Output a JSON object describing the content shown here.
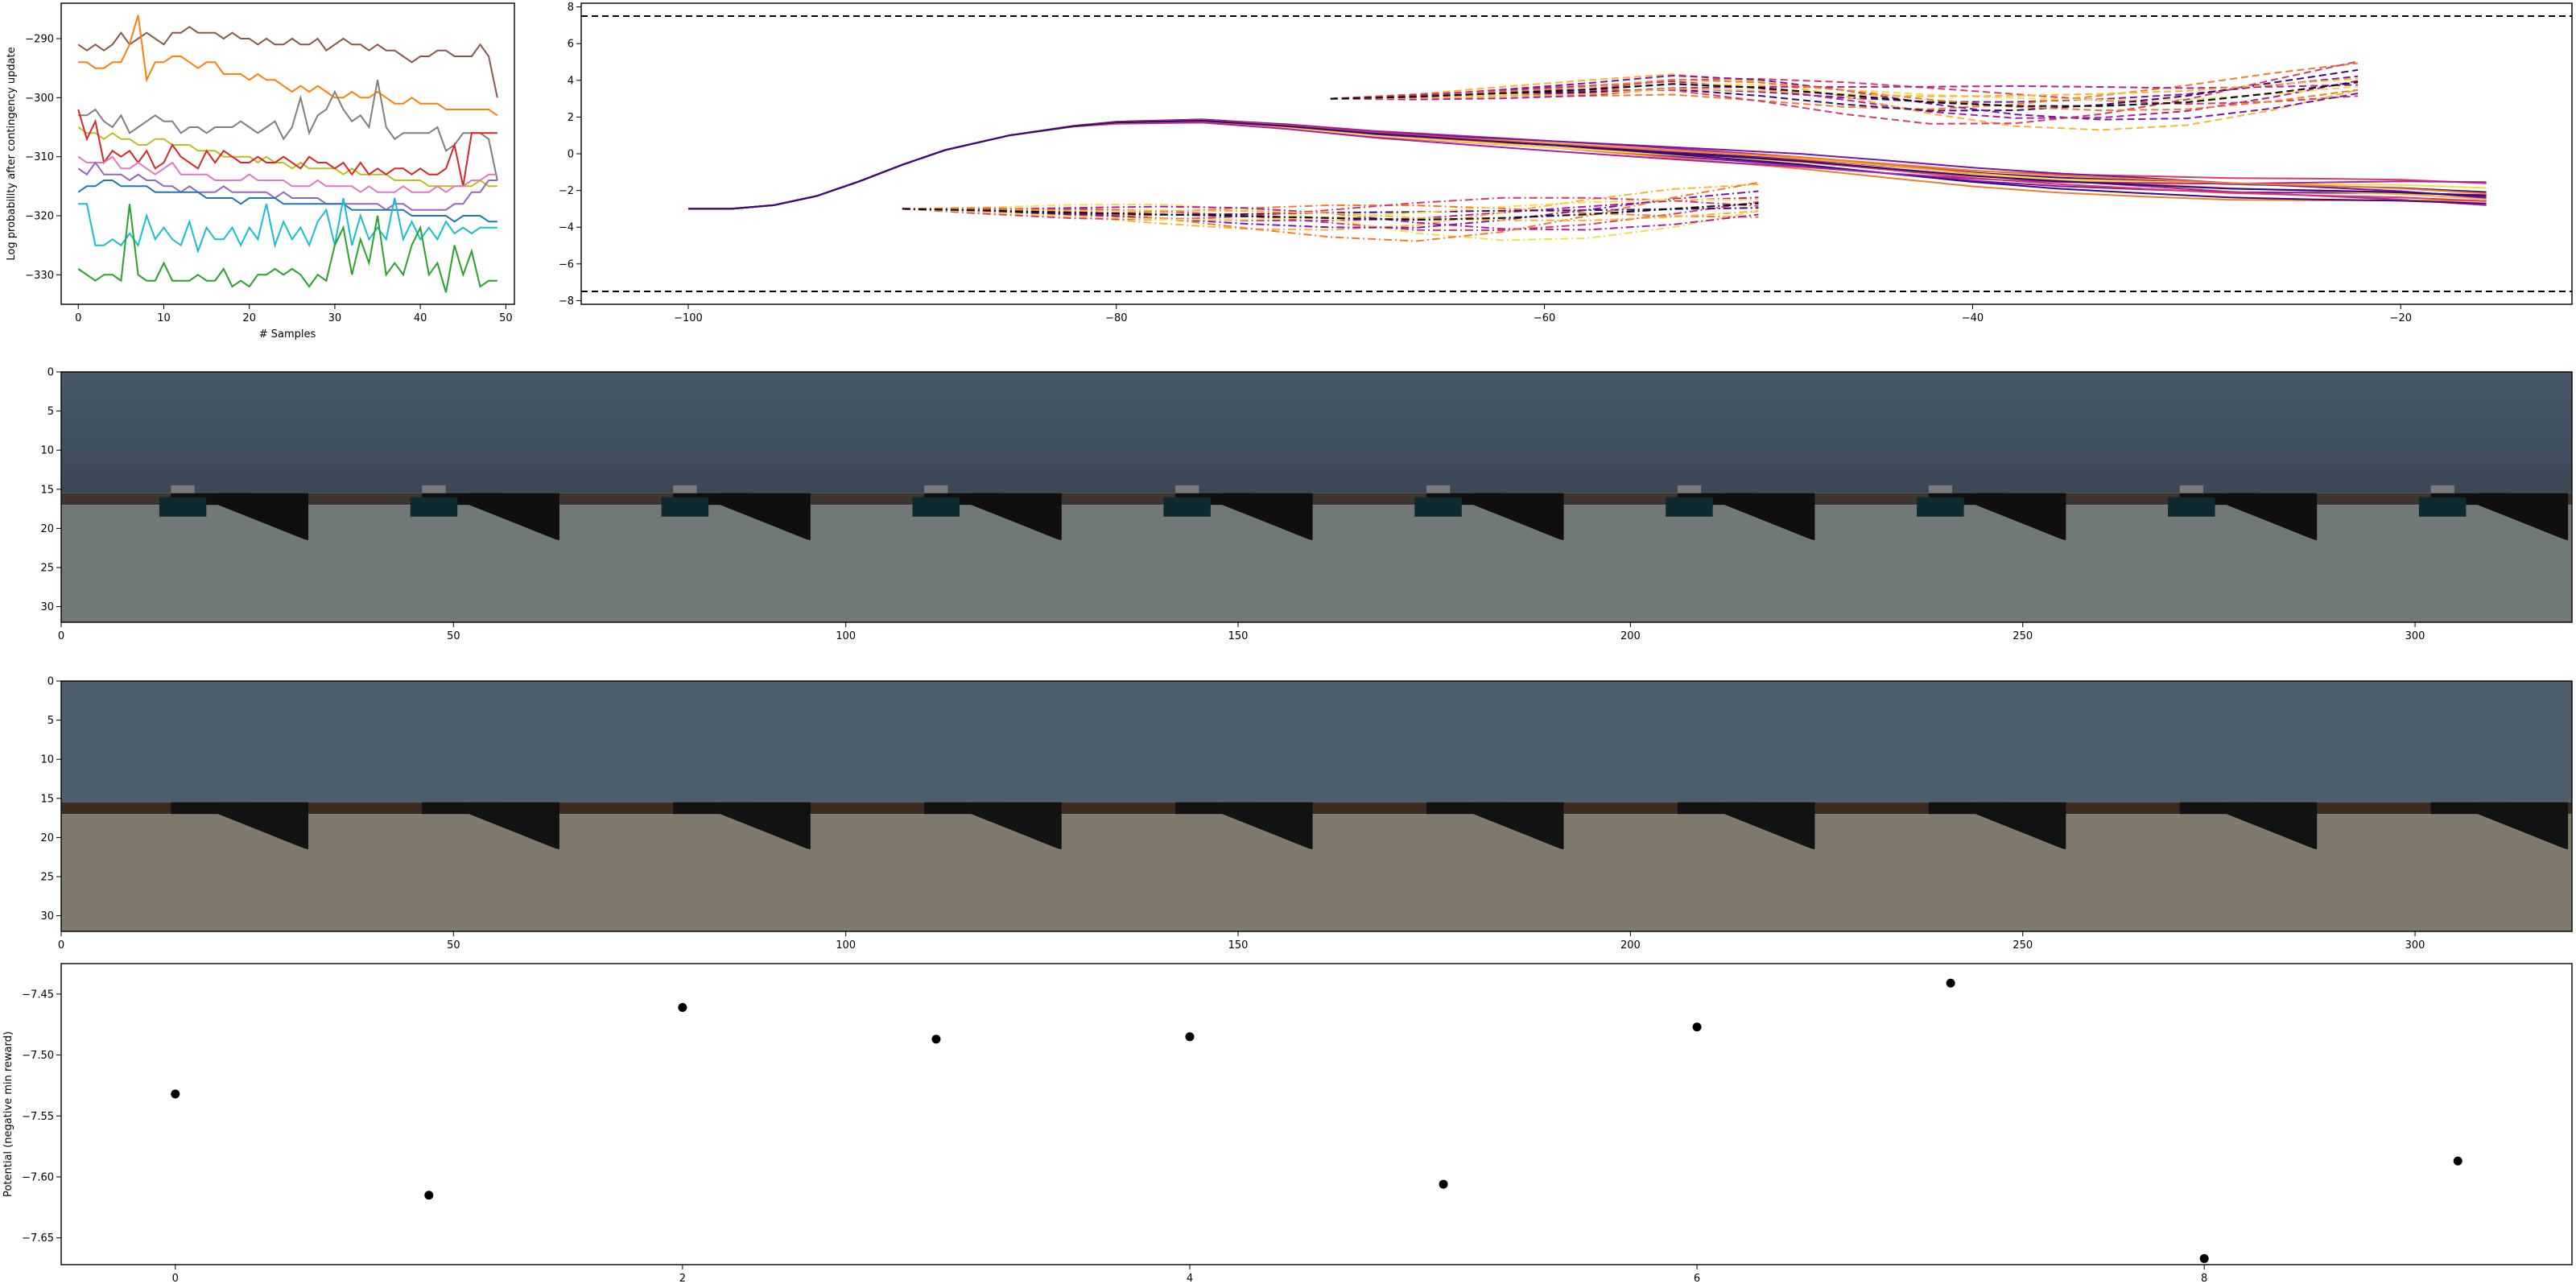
{
  "chart_data": [
    {
      "type": "line",
      "xlabel": "# Samples",
      "ylabel": "Log probability after contingency update",
      "xlim": [
        -2,
        51
      ],
      "ylim": [
        -335,
        -284
      ],
      "xticks": [
        0,
        10,
        20,
        30,
        40,
        50
      ],
      "yticks": [
        -290,
        -300,
        -310,
        -320,
        -330
      ],
      "grid": false,
      "series": [
        {
          "color": "#8c564b",
          "values": [
            -291,
            -292,
            -291,
            -292,
            -291,
            -289,
            -291,
            -290,
            -289,
            -290,
            -291,
            -289,
            -289,
            -288,
            -289,
            -289,
            -289,
            -290,
            -289,
            -290,
            -290,
            -291,
            -290,
            -291,
            -291,
            -290,
            -291,
            -291,
            -290,
            -292,
            -291,
            -290,
            -291,
            -291,
            -292,
            -291,
            -292,
            -292,
            -293,
            -294,
            -293,
            -293,
            -292,
            -292,
            -293,
            -293,
            -293,
            -291,
            -293,
            -300
          ]
        },
        {
          "color": "#ff7f0e",
          "values": [
            -294,
            -294,
            -295,
            -295,
            -294,
            -294,
            -291,
            -286,
            -297,
            -294,
            -294,
            -293,
            -293,
            -294,
            -295,
            -294,
            -294,
            -296,
            -296,
            -296,
            -297,
            -296,
            -297,
            -297,
            -298,
            -299,
            -298,
            -299,
            -298,
            -299,
            -300,
            -300,
            -299,
            -300,
            -300,
            -299,
            -300,
            -301,
            -301,
            -300,
            -301,
            -301,
            -301,
            -302,
            -302,
            -302,
            -302,
            -302,
            -302,
            -303
          ]
        },
        {
          "color": "#7f7f7f",
          "values": [
            -303,
            -303,
            -302,
            -304,
            -305,
            -303,
            -306,
            -305,
            -304,
            -303,
            -304,
            -304,
            -306,
            -305,
            -305,
            -306,
            -305,
            -305,
            -305,
            -304,
            -305,
            -306,
            -305,
            -304,
            -307,
            -305,
            -300,
            -306,
            -303,
            -302,
            -299,
            -302,
            -304,
            -303,
            -305,
            -297,
            -305,
            -307,
            -306,
            -306,
            -306,
            -306,
            -305,
            -309,
            -308,
            -306,
            -306,
            -306,
            -307,
            -314
          ]
        },
        {
          "color": "#bcbd22",
          "values": [
            -305,
            -306,
            -306,
            -307,
            -306,
            -307,
            -307,
            -308,
            -308,
            -307,
            -307,
            -308,
            -308,
            -308,
            -309,
            -309,
            -309,
            -310,
            -310,
            -310,
            -310,
            -311,
            -310,
            -311,
            -311,
            -312,
            -311,
            -312,
            -312,
            -312,
            -312,
            -313,
            -312,
            -313,
            -313,
            -313,
            -313,
            -314,
            -314,
            -314,
            -314,
            -315,
            -315,
            -315,
            -315,
            -315,
            -315,
            -314,
            -315,
            -315
          ]
        },
        {
          "color": "#d62728",
          "values": [
            -302,
            -307,
            -304,
            -311,
            -309,
            -310,
            -309,
            -311,
            -309,
            -312,
            -311,
            -308,
            -310,
            -311,
            -312,
            -309,
            -311,
            -309,
            -310,
            -311,
            -311,
            -310,
            -311,
            -311,
            -310,
            -311,
            -312,
            -310,
            -311,
            -311,
            -312,
            -311,
            -313,
            -311,
            -313,
            -312,
            -313,
            -312,
            -312,
            -313,
            -312,
            -313,
            -313,
            -312,
            -308,
            -315,
            -306,
            -306,
            -306,
            -306
          ]
        },
        {
          "color": "#e377c2",
          "values": [
            -310,
            -311,
            -311,
            -311,
            -310,
            -312,
            -312,
            -311,
            -312,
            -313,
            -312,
            -311,
            -313,
            -313,
            -313,
            -313,
            -314,
            -314,
            -314,
            -314,
            -313,
            -314,
            -314,
            -314,
            -314,
            -315,
            -315,
            -315,
            -314,
            -315,
            -315,
            -315,
            -315,
            -316,
            -315,
            -316,
            -316,
            -316,
            -315,
            -316,
            -316,
            -316,
            -315,
            -316,
            -315,
            -315,
            -314,
            -314,
            -313,
            -313
          ]
        },
        {
          "color": "#9467bd",
          "values": [
            -312,
            -313,
            -311,
            -313,
            -313,
            -313,
            -314,
            -313,
            -314,
            -314,
            -315,
            -315,
            -316,
            -315,
            -316,
            -316,
            -316,
            -315,
            -316,
            -316,
            -316,
            -316,
            -316,
            -317,
            -316,
            -317,
            -317,
            -317,
            -317,
            -318,
            -318,
            -318,
            -318,
            -318,
            -318,
            -318,
            -319,
            -318,
            -318,
            -319,
            -319,
            -319,
            -319,
            -319,
            -318,
            -318,
            -316,
            -316,
            -314,
            -314
          ]
        },
        {
          "color": "#1f77b4",
          "values": [
            -316,
            -315,
            -315,
            -314,
            -314,
            -315,
            -315,
            -315,
            -315,
            -316,
            -316,
            -316,
            -316,
            -316,
            -316,
            -317,
            -317,
            -317,
            -317,
            -318,
            -317,
            -317,
            -317,
            -317,
            -318,
            -318,
            -318,
            -318,
            -318,
            -318,
            -318,
            -318,
            -319,
            -319,
            -319,
            -319,
            -319,
            -319,
            -319,
            -320,
            -320,
            -320,
            -320,
            -320,
            -321,
            -320,
            -320,
            -320,
            -321,
            -321
          ]
        },
        {
          "color": "#17becf",
          "values": [
            -318,
            -318,
            -325,
            -325,
            -324,
            -325,
            -323,
            -325,
            -320,
            -324,
            -322,
            -324,
            -325,
            -321,
            -326,
            -322,
            -324,
            -324,
            -322,
            -325,
            -322,
            -324,
            -318,
            -325,
            -321,
            -324,
            -322,
            -325,
            -321,
            -319,
            -325,
            -317,
            -325,
            -320,
            -324,
            -322,
            -324,
            -317,
            -324,
            -321,
            -324,
            -322,
            -324,
            -321,
            -323,
            -322,
            -323,
            -322,
            -322,
            -322
          ]
        },
        {
          "color": "#2ca02c",
          "values": [
            -329,
            -330,
            -331,
            -330,
            -330,
            -331,
            -318,
            -330,
            -331,
            -331,
            -328,
            -331,
            -331,
            -331,
            -330,
            -331,
            -331,
            -329,
            -332,
            -331,
            -332,
            -330,
            -330,
            -329,
            -330,
            -329,
            -330,
            -332,
            -330,
            -331,
            -325,
            -322,
            -330,
            -324,
            -328,
            -320,
            -330,
            -328,
            -330,
            -325,
            -322,
            -330,
            -328,
            -333,
            -325,
            -330,
            -326,
            -332,
            -331,
            -331
          ]
        }
      ]
    },
    {
      "type": "line",
      "xlim": [
        -105,
        -12
      ],
      "ylim": [
        -8.2,
        8.2
      ],
      "xticks": [
        -100,
        -80,
        -60,
        -40,
        -20
      ],
      "yticks": [
        8,
        6,
        4,
        2,
        0,
        -2,
        -4,
        -6,
        -8
      ],
      "grid": false,
      "reference_lines": [
        {
          "y": 7.5,
          "style": "dashed",
          "color": "#000000"
        },
        {
          "y": -7.5,
          "style": "dashed",
          "color": "#000000"
        }
      ],
      "colormap": [
        "#3a0a7a",
        "#7b16a3",
        "#b0209a",
        "#d63b6a",
        "#f07c2c",
        "#f8b531",
        "#f3dd4e"
      ],
      "series": [
        {
          "name": "",
          "style": "solid",
          "x": [
            -100,
            -98,
            -96,
            -94,
            -92,
            -90,
            -88,
            -85,
            -82,
            -80,
            -76,
            -72,
            -68,
            -64,
            -60,
            -56,
            -52,
            -48,
            -44,
            -40,
            -36,
            -32,
            -28,
            -24,
            -20,
            -16
          ],
          "y": [
            -3.0,
            -3.0,
            -2.8,
            -2.3,
            -1.5,
            -0.6,
            0.2,
            1.0,
            1.5,
            1.7,
            1.8,
            1.5,
            1.1,
            0.8,
            0.5,
            0.2,
            -0.1,
            -0.4,
            -0.8,
            -1.2,
            -1.5,
            -1.7,
            -1.9,
            -2.0,
            -2.1,
            -2.3
          ]
        },
        {
          "name": "",
          "style": "dashed",
          "x": [
            -70,
            -66,
            -62,
            -58,
            -54,
            -50,
            -46,
            -42,
            -38,
            -34,
            -30,
            -26,
            -22
          ],
          "y": [
            3.0,
            3.1,
            3.3,
            3.5,
            3.8,
            3.6,
            3.2,
            2.8,
            2.6,
            2.6,
            2.8,
            3.3,
            3.9
          ]
        },
        {
          "name": "",
          "style": "dashdot",
          "x": [
            -90,
            -86,
            -82,
            -78,
            -74,
            -70,
            -66,
            -62,
            -58,
            -54,
            -50
          ],
          "y": [
            -3.0,
            -3.1,
            -3.2,
            -3.3,
            -3.4,
            -3.5,
            -3.6,
            -3.5,
            -3.3,
            -3.0,
            -2.7
          ]
        }
      ]
    },
    {
      "type": "heatmap",
      "xlim": [
        0,
        320
      ],
      "ylim": [
        32,
        0
      ],
      "xticks": [
        0,
        50,
        100,
        150,
        200,
        250,
        300
      ],
      "yticks": [
        0,
        5,
        10,
        15,
        20,
        25,
        30
      ],
      "tile_period": 32,
      "colors": {
        "sky": "#4e5f70",
        "dark": "#0f0f10",
        "ground": "#707878",
        "soil": "#3c3530",
        "teal": "#0e2a2e"
      }
    },
    {
      "type": "heatmap",
      "xlim": [
        0,
        320
      ],
      "ylim": [
        32,
        0
      ],
      "xticks": [
        0,
        50,
        100,
        150,
        200,
        250,
        300
      ],
      "yticks": [
        0,
        5,
        10,
        15,
        20,
        25,
        30
      ],
      "tile_period": 32,
      "colors": {
        "sky": "#4f5e6e",
        "dark": "#121212",
        "ground": "#807a6c",
        "soil": "#3c2c22"
      }
    },
    {
      "type": "scatter",
      "ylabel": "Potential (negative min reward)",
      "xlim": [
        -0.45,
        9.45
      ],
      "ylim": [
        -7.672,
        -7.425
      ],
      "xticks": [
        0,
        2,
        4,
        6,
        8
      ],
      "yticks": [
        -7.45,
        -7.5,
        -7.55,
        -7.6,
        -7.65
      ],
      "yticklabels": [
        "−7.45",
        "−7.50",
        "−7.55",
        "−7.60",
        "−7.65"
      ],
      "grid": false,
      "color": "#000000",
      "x": [
        0,
        1,
        2,
        3,
        4,
        5,
        6,
        7,
        8,
        9
      ],
      "y": [
        -7.532,
        -7.615,
        -7.461,
        -7.487,
        -7.485,
        -7.606,
        -7.477,
        -7.441,
        -7.667,
        -7.587
      ]
    }
  ]
}
